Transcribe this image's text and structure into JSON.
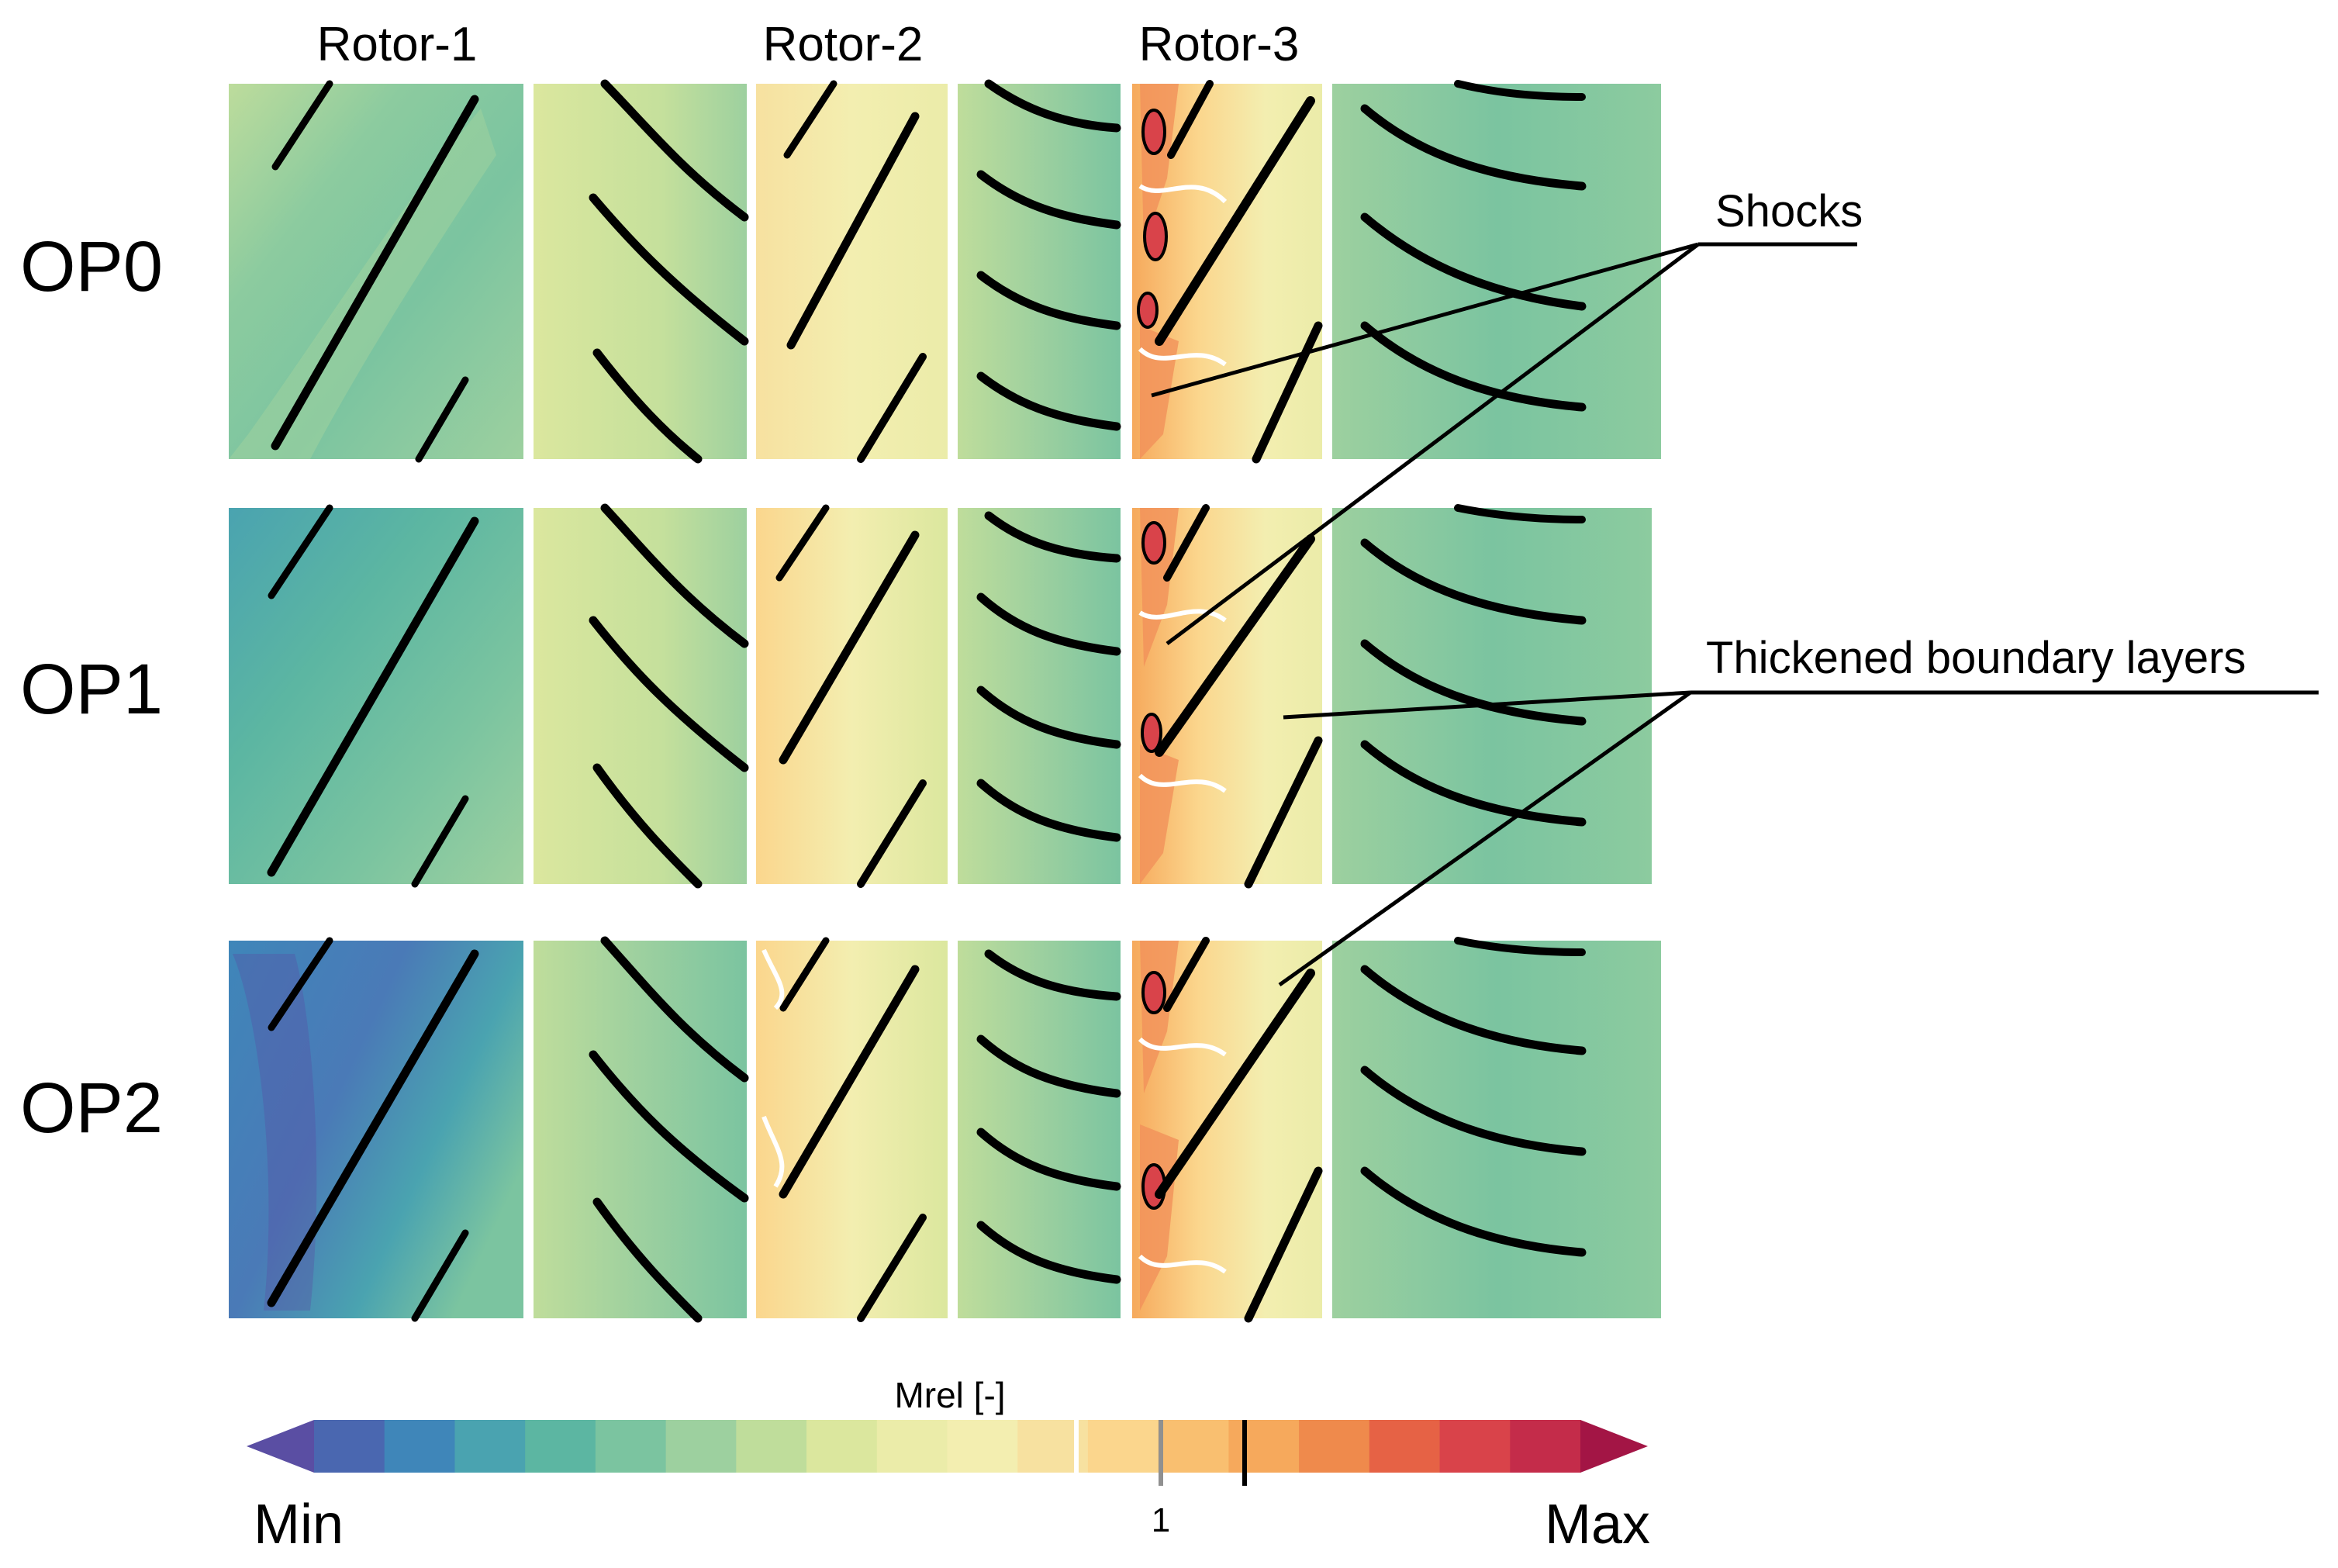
{
  "figure": {
    "columns": [
      "Rotor-1",
      "Rotor-2",
      "Rotor-3"
    ],
    "rows": [
      "OP0",
      "OP1",
      "OP2"
    ],
    "annotations": {
      "shocks": "Shocks",
      "boundary_layers": "Thickened boundary layers"
    }
  },
  "colorbar": {
    "title": "Mrel [-]",
    "min_label": "Min",
    "max_label": "Max",
    "marker_label": "1",
    "colors": [
      "#5a4ea3",
      "#4a67b0",
      "#3f86b9",
      "#4aa3b0",
      "#5cb6a2",
      "#7bc4a0",
      "#9dd09f",
      "#bfdd9b",
      "#dbe79e",
      "#ebeca9",
      "#f3eeb0",
      "#f7e1a0",
      "#fbd68d",
      "#f9bf70",
      "#f6a95c",
      "#ef8a4c",
      "#e66245",
      "#d9434a",
      "#c42c4a",
      "#a31545"
    ]
  }
}
